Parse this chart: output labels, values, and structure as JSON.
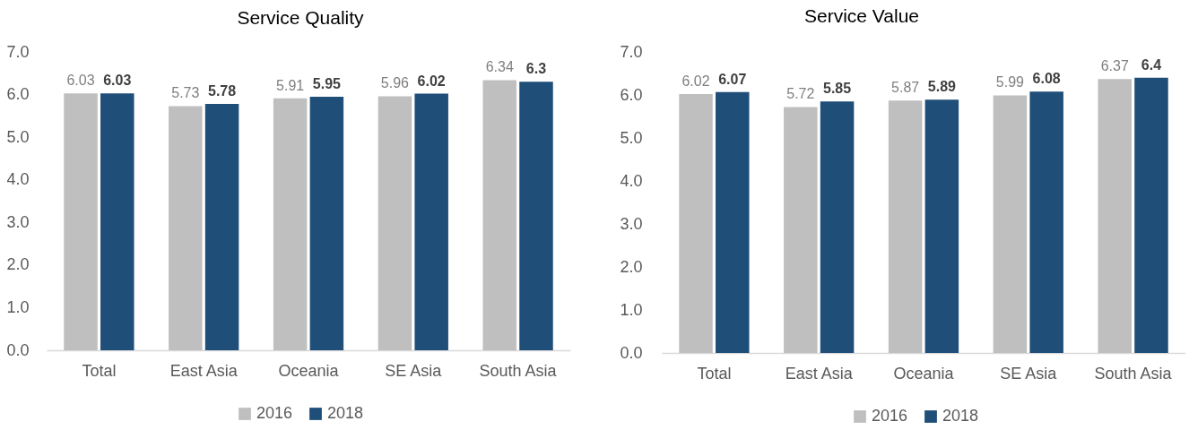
{
  "chart_data": [
    {
      "type": "bar",
      "title": "Service Quality",
      "categories": [
        "Total",
        "East Asia",
        "Oceania",
        "SE Asia",
        "South Asia"
      ],
      "series": [
        {
          "name": "2016",
          "color": "#bfbfbf",
          "values": [
            6.03,
            5.73,
            5.91,
            5.96,
            6.34
          ]
        },
        {
          "name": "2018",
          "color": "#1f4e79",
          "values": [
            6.03,
            5.78,
            5.95,
            6.02,
            6.3
          ]
        }
      ],
      "ylim": [
        0,
        7
      ],
      "yticks": [
        {
          "value": 0,
          "label": "0.0"
        },
        {
          "value": 1,
          "label": "1.0"
        },
        {
          "value": 2,
          "label": "2.0"
        },
        {
          "value": 3,
          "label": "3.0"
        },
        {
          "value": 4,
          "label": "4.0"
        },
        {
          "value": 5,
          "label": "5.0"
        },
        {
          "value": 6,
          "label": "6.0"
        },
        {
          "value": 7,
          "label": "7.0"
        }
      ],
      "data_labels": true,
      "legend": "bottom"
    },
    {
      "type": "bar",
      "title": "Service Value",
      "categories": [
        "Total",
        "East Asia",
        "Oceania",
        "SE Asia",
        "South Asia"
      ],
      "series": [
        {
          "name": "2016",
          "color": "#bfbfbf",
          "values": [
            6.02,
            5.72,
            5.87,
            5.99,
            6.37
          ]
        },
        {
          "name": "2018",
          "color": "#1f4e79",
          "values": [
            6.07,
            5.85,
            5.89,
            6.08,
            6.4
          ]
        }
      ],
      "ylim": [
        0,
        7
      ],
      "yticks": [
        {
          "value": 0,
          "label": "0.0"
        },
        {
          "value": 1,
          "label": "1.0"
        },
        {
          "value": 2,
          "label": "2.0"
        },
        {
          "value": 3,
          "label": "3.0"
        },
        {
          "value": 4,
          "label": "4.0"
        },
        {
          "value": 5,
          "label": "5.0"
        },
        {
          "value": 6,
          "label": "6.0"
        },
        {
          "value": 7,
          "label": "7.0"
        }
      ],
      "data_labels": true,
      "legend": "bottom"
    }
  ]
}
